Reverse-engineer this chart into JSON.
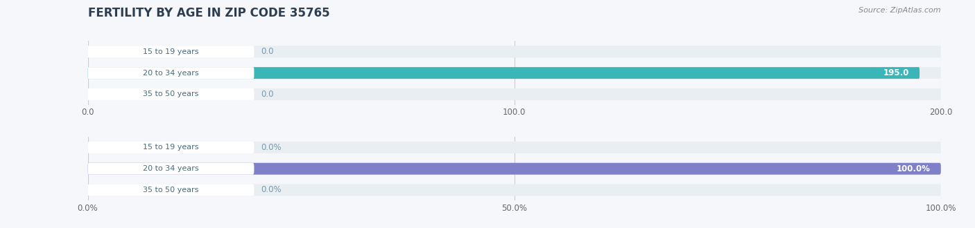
{
  "title": "FERTILITY BY AGE IN ZIP CODE 35765",
  "source": "Source: ZipAtlas.com",
  "top_chart": {
    "categories": [
      "15 to 19 years",
      "20 to 34 years",
      "35 to 50 years"
    ],
    "values": [
      0.0,
      195.0,
      0.0
    ],
    "xlim": [
      0,
      200.0
    ],
    "xticks": [
      0.0,
      100.0,
      200.0
    ],
    "xticklabels": [
      "0.0",
      "100.0",
      "200.0"
    ],
    "bar_color": "#3ab5b8",
    "bg_color": "#e8eef2",
    "bar_label_color": "#ffffff",
    "zero_label_color": "#7a9aaa",
    "is_percent": false
  },
  "bottom_chart": {
    "categories": [
      "15 to 19 years",
      "20 to 34 years",
      "35 to 50 years"
    ],
    "values": [
      0.0,
      100.0,
      0.0
    ],
    "xlim": [
      0,
      100.0
    ],
    "xticks": [
      0.0,
      50.0,
      100.0
    ],
    "xticklabels": [
      "0.0%",
      "50.0%",
      "100.0%"
    ],
    "bar_color": "#8080c8",
    "bg_color": "#e8eef2",
    "bar_label_color": "#ffffff",
    "zero_label_color": "#7a9aaa",
    "is_percent": true
  },
  "label_bg_color": "#ffffff",
  "label_text_color": "#4a6b7a",
  "title_color": "#2c3e50",
  "source_color": "#888888",
  "fig_bg_color": "#f5f7fa"
}
